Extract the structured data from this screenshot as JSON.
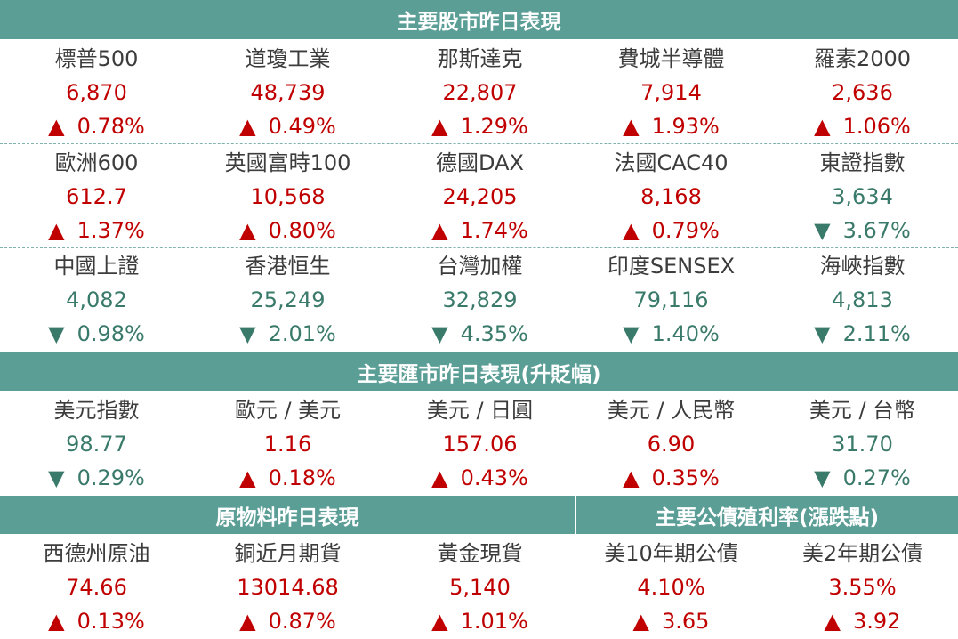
{
  "headers": {
    "stocks": "主要股市昨日表現",
    "fx": "主要匯市昨日表現(升貶幅)",
    "commodities": "原物料昨日表現",
    "bonds": "主要公債殖利率(漲跌點)"
  },
  "colors": {
    "header_bg": "#5b9e96",
    "up": "#c00000",
    "down": "#3a7a6a"
  },
  "arrows": {
    "up": "▲",
    "down": "▼"
  },
  "stocks": [
    {
      "name": "標普500",
      "value": "6,870",
      "change": "0.78%",
      "dir": "up"
    },
    {
      "name": "道瓊工業",
      "value": "48,739",
      "change": "0.49%",
      "dir": "up"
    },
    {
      "name": "那斯達克",
      "value": "22,807",
      "change": "1.29%",
      "dir": "up"
    },
    {
      "name": "費城半導體",
      "value": "7,914",
      "change": "1.93%",
      "dir": "up"
    },
    {
      "name": "羅素2000",
      "value": "2,636",
      "change": "1.06%",
      "dir": "up"
    },
    {
      "name": "歐洲600",
      "value": "612.7",
      "change": "1.37%",
      "dir": "up"
    },
    {
      "name": "英國富時100",
      "value": "10,568",
      "change": "0.80%",
      "dir": "up"
    },
    {
      "name": "德國DAX",
      "value": "24,205",
      "change": "1.74%",
      "dir": "up"
    },
    {
      "name": "法國CAC40",
      "value": "8,168",
      "change": "0.79%",
      "dir": "up"
    },
    {
      "name": "東證指數",
      "value": "3,634",
      "change": "3.67%",
      "dir": "down"
    },
    {
      "name": "中國上證",
      "value": "4,082",
      "change": "0.98%",
      "dir": "down"
    },
    {
      "name": "香港恒生",
      "value": "25,249",
      "change": "2.01%",
      "dir": "down"
    },
    {
      "name": "台灣加權",
      "value": "32,829",
      "change": "4.35%",
      "dir": "down"
    },
    {
      "name": "印度SENSEX",
      "value": "79,116",
      "change": "1.40%",
      "dir": "down"
    },
    {
      "name": "海峽指數",
      "value": "4,813",
      "change": "2.11%",
      "dir": "down"
    }
  ],
  "fx": [
    {
      "name": "美元指數",
      "value": "98.77",
      "change": "0.29%",
      "dir": "down"
    },
    {
      "name": "歐元 / 美元",
      "value": "1.16",
      "change": "0.18%",
      "dir": "up"
    },
    {
      "name": "美元 / 日圓",
      "value": "157.06",
      "change": "0.43%",
      "dir": "up"
    },
    {
      "name": "美元 / 人民幣",
      "value": "6.90",
      "change": "0.35%",
      "dir": "up"
    },
    {
      "name": "美元 / 台幣",
      "value": "31.70",
      "change": "0.27%",
      "dir": "down"
    }
  ],
  "commodities": [
    {
      "name": "西德州原油",
      "value": "74.66",
      "change": "0.13%",
      "dir": "up"
    },
    {
      "name": "銅近月期貨",
      "value": "13014.68",
      "change": "0.87%",
      "dir": "up"
    },
    {
      "name": "黃金現貨",
      "value": "5,140",
      "change": "1.01%",
      "dir": "up"
    }
  ],
  "bonds": [
    {
      "name": "美10年期公債",
      "value": "4.10%",
      "change": "3.65",
      "dir": "up"
    },
    {
      "name": "美2年期公債",
      "value": "3.55%",
      "change": "3.92",
      "dir": "up"
    }
  ]
}
